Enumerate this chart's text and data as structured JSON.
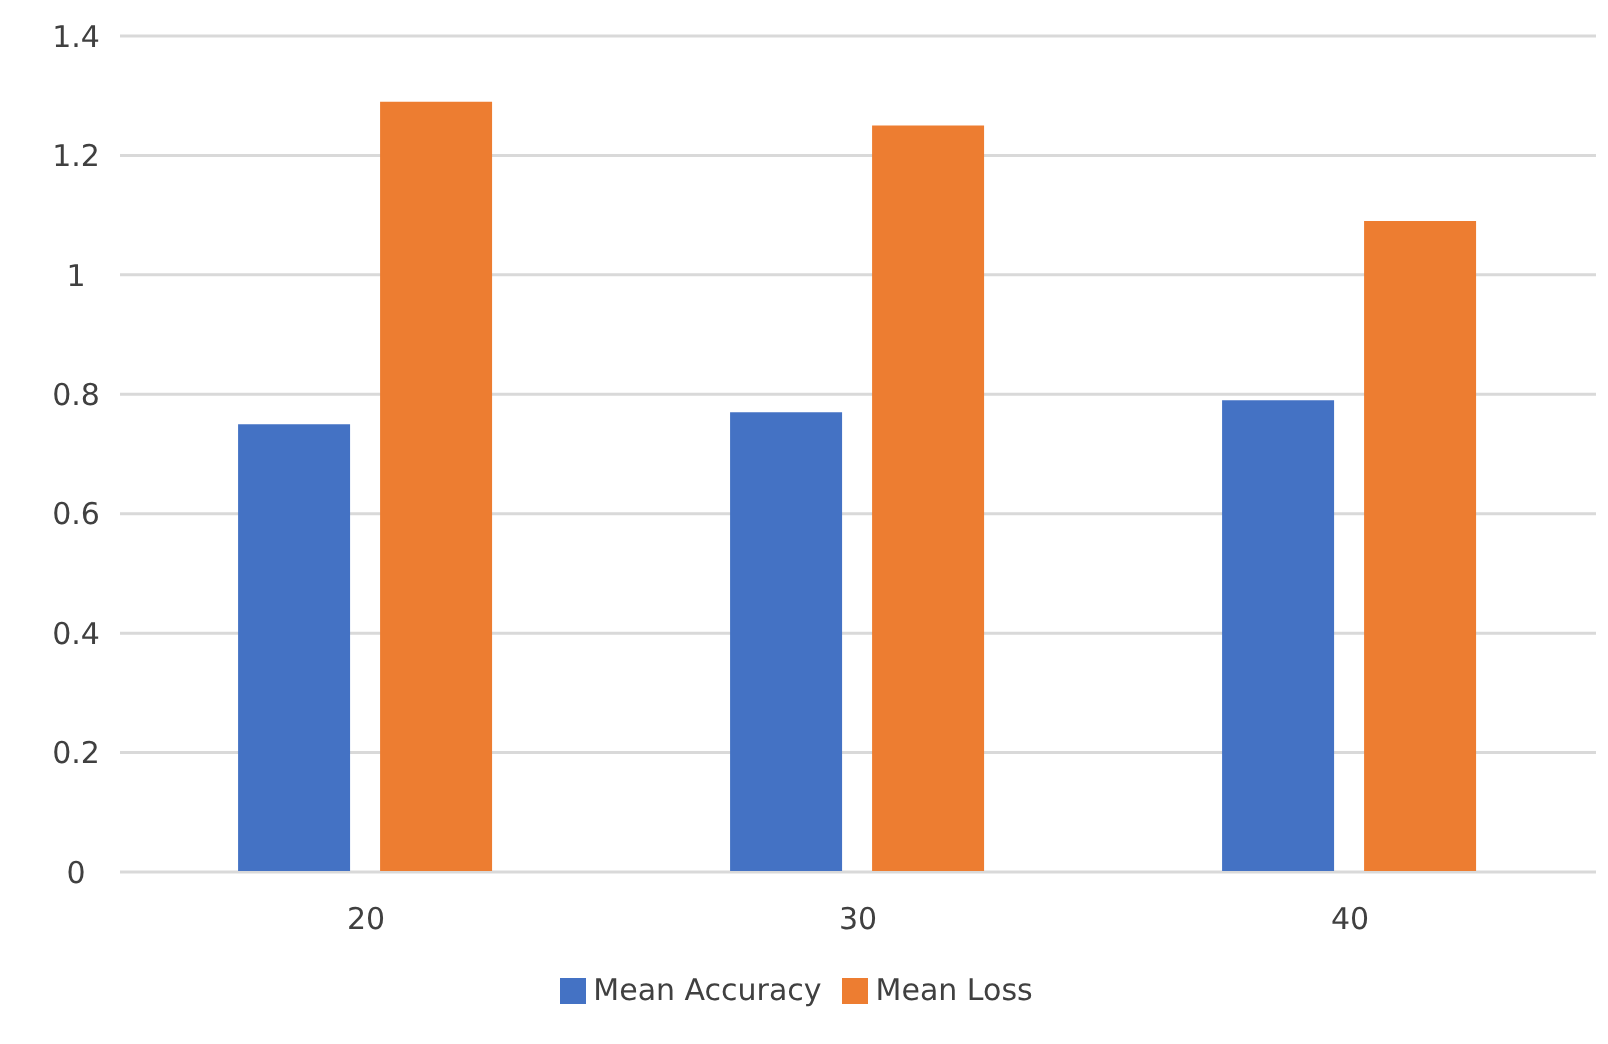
{
  "chart_data": {
    "type": "bar",
    "categories": [
      "20",
      "30",
      "40"
    ],
    "series": [
      {
        "name": "Mean Accuracy",
        "color": "#4472c4",
        "values": [
          0.75,
          0.77,
          0.79
        ]
      },
      {
        "name": "Mean Loss",
        "color": "#ed7d31",
        "values": [
          1.29,
          1.25,
          1.09
        ]
      }
    ],
    "ylim": [
      0,
      1.4
    ],
    "yticks": [
      0,
      0.2,
      0.4,
      0.6,
      0.8,
      1,
      1.2,
      1.4
    ],
    "grid": "y",
    "legend": "bottom"
  }
}
